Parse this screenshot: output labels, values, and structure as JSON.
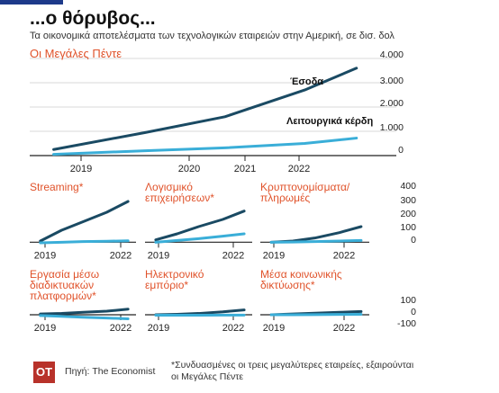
{
  "header": {
    "title": "...ο θόρυβος...",
    "subtitle": "Τα οικονομικά αποτελέσματα των τεχνολογικών εταιρειών στην Αμερική, σε δισ. δολ"
  },
  "colors": {
    "revenue": "#1a4a63",
    "profit": "#3aaed8",
    "accent": "#e0522a",
    "axis": "#222222",
    "grid": "#d8d8d8"
  },
  "chart_data": [
    {
      "type": "line",
      "title": "Οι Μεγάλες Πέντε",
      "x": [
        2018.6,
        2019.75,
        2020.75,
        2021.75,
        2022.4
      ],
      "xticks": [
        "2019",
        "2020",
        "2021",
        "2022"
      ],
      "ylim": [
        0,
        4000
      ],
      "yticks": [
        "4.000",
        "3.000",
        "2.000",
        "1.000",
        "0"
      ],
      "series": [
        {
          "name": "Έσοδα",
          "values": [
            250,
            950,
            1600,
            2700,
            3600
          ]
        },
        {
          "name": "Λειτουργικά κέρδη",
          "values": [
            50,
            200,
            320,
            500,
            720
          ]
        }
      ]
    },
    {
      "type": "line",
      "title": "Streaming*",
      "x": [
        2018.7,
        2019.5,
        2020.3,
        2021.2,
        2022
      ],
      "xticks": [
        "2019",
        "2022"
      ],
      "ylim": [
        -20,
        400
      ],
      "series": [
        {
          "values": [
            10,
            100,
            170,
            250,
            340
          ]
        },
        {
          "values": [
            -5,
            0,
            5,
            8,
            12
          ]
        }
      ]
    },
    {
      "type": "line",
      "title": "Λογισμικό επιχειρήσεων*",
      "x": [
        2018.7,
        2019.5,
        2020.3,
        2021.2,
        2022
      ],
      "xticks": [
        "2019",
        "2022"
      ],
      "ylim": [
        -20,
        400
      ],
      "series": [
        {
          "values": [
            20,
            70,
            130,
            190,
            260
          ]
        },
        {
          "values": [
            0,
            15,
            30,
            50,
            70
          ]
        }
      ]
    },
    {
      "type": "line",
      "title": "Κρυπτονομίσματα/ πληρωμές",
      "x": [
        2018.7,
        2019.5,
        2020.3,
        2021.2,
        2022
      ],
      "xticks": [
        "2019",
        "2022"
      ],
      "ylim": [
        -20,
        400
      ],
      "yticks": [
        "400",
        "300",
        "200",
        "100",
        "0"
      ],
      "series": [
        {
          "values": [
            0,
            10,
            35,
            80,
            130
          ]
        },
        {
          "values": [
            0,
            2,
            5,
            10,
            15
          ]
        }
      ]
    },
    {
      "type": "line",
      "title": "Εργασία μέσω διαδικτυακών πλατφορμών*",
      "x": [
        2018.7,
        2019.5,
        2020.3,
        2021.2,
        2022
      ],
      "xticks": [
        "2019",
        "2022"
      ],
      "ylim": [
        -100,
        100
      ],
      "series": [
        {
          "values": [
            5,
            8,
            15,
            22,
            35
          ]
        },
        {
          "values": [
            -5,
            -10,
            -15,
            -20,
            -25
          ]
        }
      ]
    },
    {
      "type": "line",
      "title": "Ηλεκτρονικό εμπόριο*",
      "x": [
        2018.7,
        2019.5,
        2020.3,
        2021.2,
        2022
      ],
      "xticks": [
        "2019",
        "2022"
      ],
      "ylim": [
        -100,
        100
      ],
      "series": [
        {
          "values": [
            0,
            3,
            8,
            18,
            30
          ]
        },
        {
          "values": [
            -3,
            -3,
            -3,
            -2,
            -2
          ]
        }
      ]
    },
    {
      "type": "line",
      "title": "Μέσα κοινωνικής δικτύωσης*",
      "x": [
        2018.7,
        2019.5,
        2020.3,
        2021.2,
        2022
      ],
      "xticks": [
        "2019",
        "2022"
      ],
      "ylim": [
        -100,
        100
      ],
      "yticks": [
        "100",
        "0",
        "-100"
      ],
      "series": [
        {
          "values": [
            0,
            5,
            10,
            15,
            20
          ]
        },
        {
          "values": [
            0,
            0,
            1,
            2,
            3
          ]
        }
      ]
    }
  ],
  "footer": {
    "logo": "OT",
    "source": "Πηγή: The Economist",
    "footnote": "*Συνδυασμένες οι τρεις μεγαλύτερες εταιρείες, εξαιρούνται οι Μεγάλες Πέντε"
  }
}
